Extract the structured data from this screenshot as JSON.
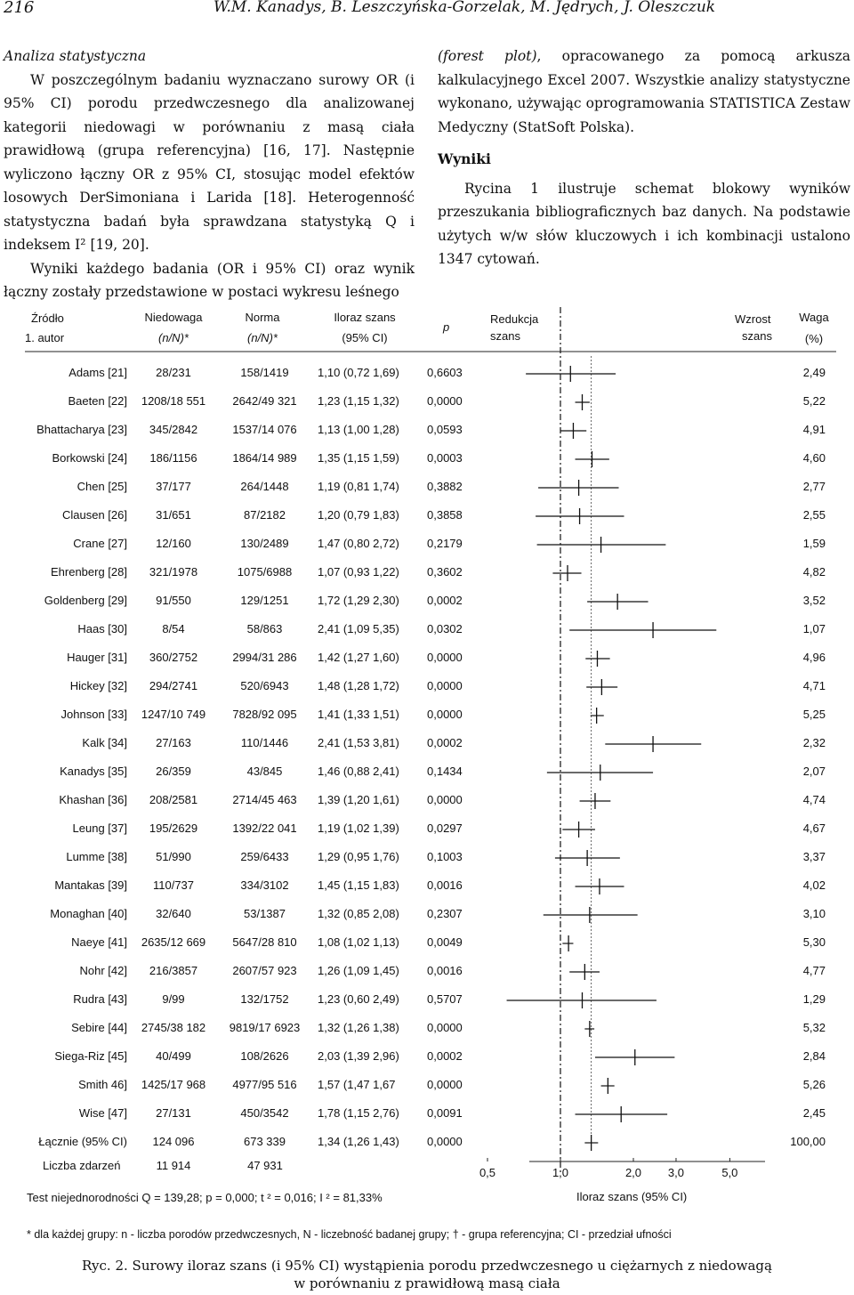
{
  "header": {
    "page_number": "216",
    "authors": "W.M. Kanadys, B. Leszczyńska-Gorzelak, M. Jędrych, J. Oleszczuk"
  },
  "left_column": {
    "heading": "Analiza statystyczna",
    "para1": "W poszczególnym badaniu wyznaczano surowy OR (i 95% CI) porodu przedwczesnego dla analizowanej kategorii niedowagi w porównaniu z masą ciała prawidłową (grupa referencyjna) [16, 17]. Następnie wyliczono łączny OR z 95% CI, stosując model efektów losowych DerSimoniana i Larida [18]. Heterogenność statystyczna badań była sprawdzana statystyką Q i indeksem I² [19, 20].",
    "para2": "Wyniki każdego badania (OR i 95% CI) oraz wynik łączny zostały przedstawione w postaci wykresu leśnego"
  },
  "right_column": {
    "para0_italic": "(forest plot)",
    "para0_rest": ", opracowanego za pomocą arkusza kalkulacyjnego Excel 2007. Wszystkie analizy statystyczne wykonano, używając oprogramowania STATISTICA Zestaw Medyczny (StatSoft Polska).",
    "heading": "Wyniki",
    "para1": "Rycina 1 ilustruje schemat blokowy wyników przeszukania bibliograficznych baz danych. Na podstawie użytych w/w słów kluczowych i ich kombinacji ustalono 1347 cytowań."
  },
  "table_headers": {
    "source1": "Źródło",
    "source2": "1. autor",
    "under1": "Niedowaga",
    "under2": "(n/N)*",
    "norm1": "Norma",
    "norm2": "(n/N)*",
    "or1": "Iloraz szans",
    "or2": "(95% CI)",
    "p": "p",
    "reduction1": "Redukcja",
    "reduction2": "szans",
    "increase1": "Wzrost",
    "increase2": "szans",
    "weight1": "Waga",
    "weight2": "(%)"
  },
  "rows": [
    {
      "author": "Adams [21]",
      "under": "28/231",
      "norm": "158/1419",
      "or_ci": "1,10 (0,72  1,69)",
      "p": "0,6603",
      "weight": "2,49"
    },
    {
      "author": "Baeten [22]",
      "under": "1208/18 551",
      "norm": "2642/49 321",
      "or_ci": "1,23 (1,15  1,32)",
      "p": "0,0000",
      "weight": "5,22"
    },
    {
      "author": "Bhattacharya [23]",
      "under": "345/2842",
      "norm": "1537/14 076",
      "or_ci": "1,13 (1,00  1,28)",
      "p": "0,0593",
      "weight": "4,91"
    },
    {
      "author": "Borkowski [24]",
      "under": "186/1156",
      "norm": "1864/14 989",
      "or_ci": "1,35 (1,15  1,59)",
      "p": "0,0003",
      "weight": "4,60"
    },
    {
      "author": "Chen [25]",
      "under": "37/177",
      "norm": "264/1448",
      "or_ci": "1,19 (0,81  1,74)",
      "p": "0,3882",
      "weight": "2,77"
    },
    {
      "author": "Clausen [26]",
      "under": "31/651",
      "norm": "87/2182",
      "or_ci": "1,20 (0,79  1,83)",
      "p": "0,3858",
      "weight": "2,55"
    },
    {
      "author": "Crane [27]",
      "under": "12/160",
      "norm": "130/2489",
      "or_ci": "1,47 (0,80  2,72)",
      "p": "0,2179",
      "weight": "1,59"
    },
    {
      "author": "Ehrenberg [28]",
      "under": "321/1978",
      "norm": "1075/6988",
      "or_ci": "1,07 (0,93  1,22)",
      "p": "0,3602",
      "weight": "4,82"
    },
    {
      "author": "Goldenberg [29]",
      "under": "91/550",
      "norm": "129/1251",
      "or_ci": "1,72 (1,29  2,30)",
      "p": "0,0002",
      "weight": "3,52"
    },
    {
      "author": "Haas [30]",
      "under": "8/54",
      "norm": "58/863",
      "or_ci": "2,41 (1,09  5,35)",
      "p": "0,0302",
      "weight": "1,07"
    },
    {
      "author": "Hauger [31]",
      "under": "360/2752",
      "norm": "2994/31 286",
      "or_ci": "1,42 (1,27  1,60)",
      "p": "0,0000",
      "weight": "4,96"
    },
    {
      "author": "Hickey [32]",
      "under": "294/2741",
      "norm": "520/6943",
      "or_ci": "1,48 (1,28  1,72)",
      "p": "0,0000",
      "weight": "4,71"
    },
    {
      "author": "Johnson [33]",
      "under": "1247/10 749",
      "norm": "7828/92 095",
      "or_ci": "1,41 (1,33  1,51)",
      "p": "0,0000",
      "weight": "5,25"
    },
    {
      "author": "Kalk [34]",
      "under": "27/163",
      "norm": "110/1446",
      "or_ci": "2,41 (1,53  3,81)",
      "p": "0,0002",
      "weight": "2,32"
    },
    {
      "author": "Kanadys [35]",
      "under": "26/359",
      "norm": "43/845",
      "or_ci": "1,46 (0,88  2,41)",
      "p": "0,1434",
      "weight": "2,07"
    },
    {
      "author": "Khashan [36]",
      "under": "208/2581",
      "norm": "2714/45 463",
      "or_ci": "1,39 (1,20  1,61)",
      "p": "0,0000",
      "weight": "4,74"
    },
    {
      "author": "Leung [37]",
      "under": "195/2629",
      "norm": "1392/22 041",
      "or_ci": "1,19 (1,02  1,39)",
      "p": "0,0297",
      "weight": "4,67"
    },
    {
      "author": "Lumme [38]",
      "under": "51/990",
      "norm": "259/6433",
      "or_ci": "1,29 (0,95  1,76)",
      "p": "0,1003",
      "weight": "3,37"
    },
    {
      "author": "Mantakas [39]",
      "under": "110/737",
      "norm": "334/3102",
      "or_ci": "1,45 (1,15  1,83)",
      "p": "0,0016",
      "weight": "4,02"
    },
    {
      "author": "Monaghan [40]",
      "under": "32/640",
      "norm": "53/1387",
      "or_ci": "1,32 (0,85  2,08)",
      "p": "0,2307",
      "weight": "3,10"
    },
    {
      "author": "Naeye [41]",
      "under": "2635/12 669",
      "norm": "5647/28 810",
      "or_ci": "1,08 (1,02  1,13)",
      "p": "0,0049",
      "weight": "5,30"
    },
    {
      "author": "Nohr [42]",
      "under": "216/3857",
      "norm": "2607/57 923",
      "or_ci": "1,26 (1,09  1,45)",
      "p": "0,0016",
      "weight": "4,77"
    },
    {
      "author": "Rudra [43]",
      "under": "9/99",
      "norm": "132/1752",
      "or_ci": "1,23 (0,60  2,49)",
      "p": "0,5707",
      "weight": "1,29"
    },
    {
      "author": "Sebire [44]",
      "under": "2745/38 182",
      "norm": "9819/17 6923",
      "or_ci": "1,32 (1,26  1,38)",
      "p": "0,0000",
      "weight": "5,32"
    },
    {
      "author": "Siega-Riz [45]",
      "under": "40/499",
      "norm": "108/2626",
      "or_ci": "2,03 (1,39  2,96)",
      "p": "0,0002",
      "weight": "2,84"
    },
    {
      "author": "Smith 46]",
      "under": "1425/17 968",
      "norm": "4977/95 516",
      "or_ci": "1,57 (1,47  1,67",
      "p": "0,0000",
      "weight": "5,26"
    },
    {
      "author": "Wise [47]",
      "under": "27/131",
      "norm": "450/3542",
      "or_ci": "1,78 (1,15  2,76)",
      "p": "0,0091",
      "weight": "2,45"
    },
    {
      "author": "Łącznie (95% CI)",
      "under": "124 096",
      "norm": "673 339",
      "or_ci": "1,34 (1,26  1,43)",
      "p": "0,0000",
      "weight": "100,00"
    }
  ],
  "events": {
    "label": "Liczba zdarzeń",
    "under": "11 914",
    "norm": "47 931"
  },
  "heterogeneity": "Test niejednorodności Q  = 139,28; p = 0,000; t ² = 0,016; I ² = 81,33%",
  "axis": {
    "ticks": [
      "0,5",
      "1,0",
      "2,0",
      "3,0",
      "5,0"
    ],
    "label": "Iloraz szans (95% CI)"
  },
  "chart_data": {
    "type": "forest",
    "x_scale": "log",
    "xlabel": "Iloraz szans (95% CI)",
    "xticks": [
      0.5,
      1.0,
      2.0,
      3.0,
      5.0
    ],
    "reference_line": 1.0,
    "pooled_line": 1.34,
    "studies": [
      {
        "label": "Adams [21]",
        "or": 1.1,
        "lo": 0.72,
        "hi": 1.69
      },
      {
        "label": "Baeten [22]",
        "or": 1.23,
        "lo": 1.15,
        "hi": 1.32
      },
      {
        "label": "Bhattacharya [23]",
        "or": 1.13,
        "lo": 1.0,
        "hi": 1.28
      },
      {
        "label": "Borkowski [24]",
        "or": 1.35,
        "lo": 1.15,
        "hi": 1.59
      },
      {
        "label": "Chen [25]",
        "or": 1.19,
        "lo": 0.81,
        "hi": 1.74
      },
      {
        "label": "Clausen [26]",
        "or": 1.2,
        "lo": 0.79,
        "hi": 1.83
      },
      {
        "label": "Crane [27]",
        "or": 1.47,
        "lo": 0.8,
        "hi": 2.72
      },
      {
        "label": "Ehrenberg [28]",
        "or": 1.07,
        "lo": 0.93,
        "hi": 1.22
      },
      {
        "label": "Goldenberg [29]",
        "or": 1.72,
        "lo": 1.29,
        "hi": 2.3
      },
      {
        "label": "Haas [30]",
        "or": 2.41,
        "lo": 1.09,
        "hi": 5.35
      },
      {
        "label": "Hauger [31]",
        "or": 1.42,
        "lo": 1.27,
        "hi": 1.6
      },
      {
        "label": "Hickey [32]",
        "or": 1.48,
        "lo": 1.28,
        "hi": 1.72
      },
      {
        "label": "Johnson [33]",
        "or": 1.41,
        "lo": 1.33,
        "hi": 1.51
      },
      {
        "label": "Kalk [34]",
        "or": 2.41,
        "lo": 1.53,
        "hi": 3.81
      },
      {
        "label": "Kanadys [35]",
        "or": 1.46,
        "lo": 0.88,
        "hi": 2.41
      },
      {
        "label": "Khashan [36]",
        "or": 1.39,
        "lo": 1.2,
        "hi": 1.61
      },
      {
        "label": "Leung [37]",
        "or": 1.19,
        "lo": 1.02,
        "hi": 1.39
      },
      {
        "label": "Lumme [38]",
        "or": 1.29,
        "lo": 0.95,
        "hi": 1.76
      },
      {
        "label": "Mantakas [39]",
        "or": 1.45,
        "lo": 1.15,
        "hi": 1.83
      },
      {
        "label": "Monaghan [40]",
        "or": 1.32,
        "lo": 0.85,
        "hi": 2.08
      },
      {
        "label": "Naeye [41]",
        "or": 1.08,
        "lo": 1.02,
        "hi": 1.13
      },
      {
        "label": "Nohr [42]",
        "or": 1.26,
        "lo": 1.09,
        "hi": 1.45
      },
      {
        "label": "Rudra [43]",
        "or": 1.23,
        "lo": 0.6,
        "hi": 2.49
      },
      {
        "label": "Sebire [44]",
        "or": 1.32,
        "lo": 1.26,
        "hi": 1.38
      },
      {
        "label": "Siega-Riz [45]",
        "or": 2.03,
        "lo": 1.39,
        "hi": 2.96
      },
      {
        "label": "Smith 46]",
        "or": 1.57,
        "lo": 1.47,
        "hi": 1.67
      },
      {
        "label": "Wise [47]",
        "or": 1.78,
        "lo": 1.15,
        "hi": 2.76
      },
      {
        "label": "Łącznie (95% CI)",
        "or": 1.34,
        "lo": 1.26,
        "hi": 1.43
      }
    ]
  },
  "footnote": "* dla każdej grupy: n - liczba porodów przedwczesnych, N - liczebność badanej grupy; † - grupa referencyjna; CI - przedział ufności",
  "caption": {
    "line1": "Ryc. 2. Surowy iloraz szans (i 95% CI) wystąpienia porodu przedwczesnego u ciężarnych z niedowagą",
    "line2": "w porównaniu  z prawidłową masą ciała"
  }
}
